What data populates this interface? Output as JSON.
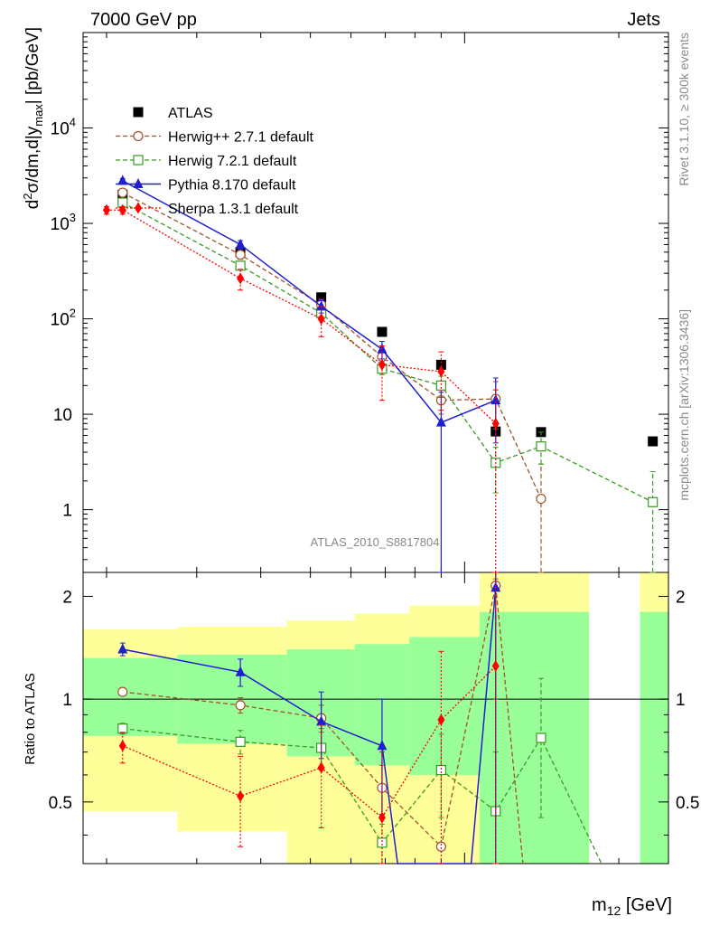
{
  "header": {
    "left": "7000 GeV pp",
    "right": "Jets",
    "side_top": "Rivet 3.1.10, ≥ 300k events",
    "side_bottom": "mcplots.cern.ch [arXiv:1306.3436]",
    "analysis": "ATLAS_2010_S8817804"
  },
  "chart_data": [
    {
      "type": "scatter",
      "panel": "main",
      "ylabel": "d²σ/dm,d|y_max| [pb/GeV]",
      "ylabel_parts": {
        "prefix": "d",
        "sup": "2",
        "mid": "σ/dm,d|y",
        "sub": "max",
        "suffix": "| [pb/GeV]"
      },
      "xlabel": "m₁₂ [GeV]",
      "xlabel_parts": {
        "main": "m",
        "sub": "12",
        "suffix": " [GeV]"
      },
      "yscale": "log",
      "ylim": [
        0.22,
        100000
      ],
      "x_scale": "log",
      "x_points": [
        215,
        365,
        525,
        690,
        900,
        1150,
        1410,
        2330
      ],
      "y_ticks": [
        {
          "value": 1,
          "label": "1"
        },
        {
          "value": 10,
          "label": "10"
        },
        {
          "value": 100,
          "label": "10",
          "exp": "2"
        },
        {
          "value": 1000,
          "label": "10",
          "exp": "3"
        },
        {
          "value": 10000,
          "label": "10",
          "exp": "4"
        }
      ],
      "legend_position": "top-left",
      "series": [
        {
          "name": "ATLAS",
          "color": "#000000",
          "marker": "filled-square",
          "line": "none",
          "points": [
            {
              "x": 215,
              "y": 2000
            },
            {
              "x": 365,
              "y": 500
            },
            {
              "x": 525,
              "y": 168
            },
            {
              "x": 690,
              "y": 73
            },
            {
              "x": 900,
              "y": 33
            },
            {
              "x": 1150,
              "y": 6.6
            },
            {
              "x": 1410,
              "y": 6.5
            },
            {
              "x": 2330,
              "y": 5.2
            }
          ]
        },
        {
          "name": "Herwig++ 2.7.1 default",
          "color": "#a0522d",
          "marker": "open-circle",
          "line": "dashed",
          "points": [
            {
              "x": 215,
              "y": 2100,
              "lo": 1900,
              "hi": 2300
            },
            {
              "x": 365,
              "y": 470,
              "lo": 420,
              "hi": 520
            },
            {
              "x": 525,
              "y": 140,
              "lo": 120,
              "hi": 160
            },
            {
              "x": 690,
              "y": 40,
              "lo": 33,
              "hi": 47
            },
            {
              "x": 900,
              "y": 14,
              "lo": 10,
              "hi": 18
            },
            {
              "x": 1150,
              "y": 14.5,
              "lo": 7,
              "hi": 22
            },
            {
              "x": 1410,
              "y": 1.3,
              "lo": 0.22,
              "hi": 3
            }
          ]
        },
        {
          "name": "Herwig 7.2.1 default",
          "color": "#3a9a24",
          "marker": "open-square",
          "line": "dashed",
          "points": [
            {
              "x": 215,
              "y": 1650,
              "lo": 1550,
              "hi": 1750
            },
            {
              "x": 365,
              "y": 360,
              "lo": 330,
              "hi": 390
            },
            {
              "x": 525,
              "y": 115,
              "lo": 100,
              "hi": 130
            },
            {
              "x": 690,
              "y": 30,
              "lo": 26,
              "hi": 34
            },
            {
              "x": 900,
              "y": 20,
              "lo": 15,
              "hi": 25
            },
            {
              "x": 1150,
              "y": 3.1,
              "lo": 1.5,
              "hi": 4.5
            },
            {
              "x": 1410,
              "y": 4.6,
              "lo": 3,
              "hi": 6.5
            },
            {
              "x": 2330,
              "y": 1.2,
              "lo": 0.22,
              "hi": 2.5
            }
          ]
        },
        {
          "name": "Pythia 8.170 default",
          "color": "#1f1fd1",
          "marker": "filled-triangle",
          "line": "solid",
          "points": [
            {
              "x": 215,
              "y": 2800,
              "lo": 2650,
              "hi": 2950
            },
            {
              "x": 365,
              "y": 600,
              "lo": 540,
              "hi": 660
            },
            {
              "x": 525,
              "y": 135,
              "lo": 115,
              "hi": 155
            },
            {
              "x": 690,
              "y": 48,
              "lo": 38,
              "hi": 58
            },
            {
              "x": 900,
              "y": 8.2,
              "lo": 0.22,
              "hi": 17
            },
            {
              "x": 1150,
              "y": 14,
              "lo": 5,
              "hi": 24
            }
          ]
        },
        {
          "name": "Sherpa 1.3.1 default",
          "color": "#ff0000",
          "marker": "filled-diamond",
          "line": "dotted",
          "points": [
            {
              "x": 200,
              "y": 1380,
              "lo": 1250,
              "hi": 1500
            },
            {
              "x": 215,
              "y": 1380,
              "lo": 1250,
              "hi": 1500
            },
            {
              "x": 365,
              "y": 265,
              "lo": 200,
              "hi": 330
            },
            {
              "x": 525,
              "y": 100,
              "lo": 65,
              "hi": 135
            },
            {
              "x": 690,
              "y": 33,
              "lo": 14,
              "hi": 52
            },
            {
              "x": 900,
              "y": 28,
              "lo": 11,
              "hi": 45
            },
            {
              "x": 1150,
              "y": 8,
              "lo": 0.22,
              "hi": 18
            }
          ]
        }
      ]
    },
    {
      "type": "scatter",
      "panel": "ratio",
      "ylabel": "Ratio to ATLAS",
      "ylim": [
        0.33,
        2.35
      ],
      "reference_line": 1,
      "y_ticks": [
        {
          "value": 0.5,
          "label": "0.5"
        },
        {
          "value": 1,
          "label": "1"
        },
        {
          "value": 2,
          "label": "2"
        }
      ],
      "bands": [
        {
          "x0": 180,
          "x1": 275,
          "y_lo": 0.47,
          "y_hi": 1.6,
          "g_lo": 0.78,
          "g_hi": 1.32
        },
        {
          "x0": 275,
          "x1": 450,
          "y_lo": 0.41,
          "y_hi": 1.63,
          "g_lo": 0.74,
          "g_hi": 1.35
        },
        {
          "x0": 450,
          "x1": 610,
          "y_lo": 0.33,
          "y_hi": 1.7,
          "g_lo": 0.68,
          "g_hi": 1.4
        },
        {
          "x0": 610,
          "x1": 780,
          "y_lo": 0.33,
          "y_hi": 1.78,
          "g_lo": 0.64,
          "g_hi": 1.45
        },
        {
          "x0": 780,
          "x1": 1070,
          "y_lo": 0.33,
          "y_hi": 1.88,
          "g_lo": 0.6,
          "g_hi": 1.52
        },
        {
          "x0": 1070,
          "x1": 1750,
          "y_lo": 0.33,
          "y_hi": 2.35,
          "g_lo": 0.33,
          "g_hi": 1.8
        },
        {
          "x0": 2200,
          "x1": 2500,
          "y_lo": 0.33,
          "y_hi": 2.35,
          "g_lo": 0.33,
          "g_hi": 1.8
        }
      ],
      "series": [
        {
          "name": "Herwig++ 2.7.1 default",
          "color": "#a0522d",
          "marker": "open-circle",
          "line": "dashed",
          "points": [
            {
              "x": 215,
              "y": 1.05
            },
            {
              "x": 365,
              "y": 0.96,
              "lo": 0.91,
              "hi": 1.01
            },
            {
              "x": 525,
              "y": 0.88,
              "lo": 0.8,
              "hi": 0.96
            },
            {
              "x": 690,
              "y": 0.55,
              "lo": 0.46,
              "hi": 0.64
            },
            {
              "x": 900,
              "y": 0.37
            },
            {
              "x": 1150,
              "y": 2.15,
              "lo": 1.0,
              "hi": 2.25
            },
            {
              "x": 1300,
              "y": 0.33
            }
          ]
        },
        {
          "name": "Herwig 7.2.1 default",
          "color": "#3a9a24",
          "marker": "open-square",
          "line": "dashed",
          "points": [
            {
              "x": 215,
              "y": 0.82,
              "lo": 0.79,
              "hi": 0.85
            },
            {
              "x": 365,
              "y": 0.75,
              "lo": 0.69,
              "hi": 0.81
            },
            {
              "x": 525,
              "y": 0.72,
              "lo": 0.62,
              "hi": 0.82
            },
            {
              "x": 690,
              "y": 0.38,
              "lo": 0.33,
              "hi": 0.43
            },
            {
              "x": 900,
              "y": 0.62,
              "lo": 0.45,
              "hi": 0.79
            },
            {
              "x": 1150,
              "y": 0.47,
              "lo": 0.33,
              "hi": 0.7
            },
            {
              "x": 1410,
              "y": 0.77,
              "lo": 0.45,
              "hi": 1.15
            },
            {
              "x": 1850,
              "y": 0.33
            }
          ]
        },
        {
          "name": "Pythia 8.170 default",
          "color": "#1f1fd1",
          "marker": "filled-triangle",
          "line": "solid",
          "points": [
            {
              "x": 215,
              "y": 1.4,
              "lo": 1.34,
              "hi": 1.46
            },
            {
              "x": 365,
              "y": 1.2,
              "lo": 1.09,
              "hi": 1.31
            },
            {
              "x": 525,
              "y": 0.86,
              "lo": 0.67,
              "hi": 1.05
            },
            {
              "x": 690,
              "y": 0.73,
              "lo": 0.46,
              "hi": 1.0
            },
            {
              "x": 740,
              "y": 0.33
            },
            {
              "x": 1030,
              "y": 0.33
            },
            {
              "x": 1150,
              "y": 2.12,
              "lo": 0.33,
              "hi": 2.35
            }
          ]
        },
        {
          "name": "Sherpa 1.3.1 default",
          "color": "#ff0000",
          "marker": "filled-diamond",
          "line": "dotted",
          "points": [
            {
              "x": 215,
              "y": 0.73,
              "lo": 0.65,
              "hi": 0.8
            },
            {
              "x": 365,
              "y": 0.52,
              "lo": 0.37,
              "hi": 0.68
            },
            {
              "x": 525,
              "y": 0.63,
              "lo": 0.42,
              "hi": 0.84
            },
            {
              "x": 690,
              "y": 0.45,
              "lo": 0.33,
              "hi": 0.7
            },
            {
              "x": 900,
              "y": 0.87,
              "lo": 0.33,
              "hi": 1.38
            },
            {
              "x": 1150,
              "y": 1.25,
              "lo": 0.33,
              "hi": 2.35
            }
          ]
        }
      ]
    }
  ]
}
